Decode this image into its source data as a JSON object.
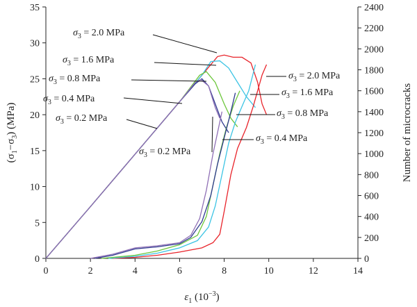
{
  "chart_data": {
    "type": "line",
    "title": "",
    "xlabel": {
      "base": "ε",
      "sub": "1",
      "rest": " (10",
      "sup": "−3",
      "end": ")"
    },
    "ylabel_left": {
      "pre": "(σ",
      "sub1": "1",
      "mid": "−σ",
      "sub2": "3",
      "end": ") (MPa)"
    },
    "ylabel_right": "Number of microcracks",
    "xlim": [
      0,
      14
    ],
    "ylim_left": [
      0,
      35
    ],
    "ylim_right": [
      0,
      2400
    ],
    "x_ticks": [
      "0",
      "2",
      "4",
      "6",
      "8",
      "10",
      "12",
      "14"
    ],
    "y_ticks_left": [
      "0",
      "5",
      "10",
      "15",
      "20",
      "25",
      "30",
      "35"
    ],
    "y_ticks_right": [
      "0",
      "200",
      "400",
      "600",
      "800",
      "1000",
      "1200",
      "1400",
      "1600",
      "1800",
      "2000",
      "2200",
      "2400"
    ],
    "grid": false,
    "series": [
      {
        "name": "σ3 = 2.0 MPa",
        "color": "#e8232a",
        "stress": [
          [
            0,
            0
          ],
          [
            2,
            7.2
          ],
          [
            4,
            14.5
          ],
          [
            6,
            21.8
          ],
          [
            7,
            25.5
          ],
          [
            7.7,
            28.1
          ],
          [
            8.0,
            28.3
          ],
          [
            8.4,
            28.0
          ],
          [
            8.8,
            28.0
          ],
          [
            9.2,
            27.2
          ],
          [
            9.5,
            24.5
          ],
          [
            9.7,
            21.5
          ],
          [
            9.9,
            20.0
          ]
        ],
        "cracks": [
          [
            3,
            0
          ],
          [
            4,
            10
          ],
          [
            5,
            30
          ],
          [
            6,
            60
          ],
          [
            7,
            100
          ],
          [
            7.5,
            150
          ],
          [
            7.8,
            230
          ],
          [
            8.0,
            450
          ],
          [
            8.3,
            800
          ],
          [
            8.6,
            1050
          ],
          [
            9.0,
            1250
          ],
          [
            9.3,
            1450
          ],
          [
            9.5,
            1600
          ],
          [
            9.7,
            1750
          ],
          [
            9.9,
            1850
          ]
        ]
      },
      {
        "name": "σ3 = 1.6 MPa",
        "color": "#3cc4e4",
        "stress": [
          [
            0,
            0
          ],
          [
            2,
            7.2
          ],
          [
            4,
            14.5
          ],
          [
            6,
            21.8
          ],
          [
            7,
            25.5
          ],
          [
            7.4,
            27.4
          ],
          [
            7.8,
            27.5
          ],
          [
            8.2,
            26.5
          ],
          [
            8.6,
            24.5
          ],
          [
            9.0,
            22.5
          ],
          [
            9.4,
            21.0
          ]
        ],
        "cracks": [
          [
            2.8,
            0
          ],
          [
            4,
            20
          ],
          [
            5,
            50
          ],
          [
            6,
            100
          ],
          [
            6.8,
            170
          ],
          [
            7.3,
            300
          ],
          [
            7.6,
            500
          ],
          [
            7.9,
            800
          ],
          [
            8.2,
            1100
          ],
          [
            8.5,
            1300
          ],
          [
            8.8,
            1450
          ],
          [
            9.1,
            1600
          ],
          [
            9.4,
            1850
          ]
        ]
      },
      {
        "name": "σ3 = 0.8 MPa",
        "color": "#6cc63b",
        "stress": [
          [
            0,
            0
          ],
          [
            2,
            7.2
          ],
          [
            4,
            14.5
          ],
          [
            6,
            21.8
          ],
          [
            6.9,
            25.5
          ],
          [
            7.2,
            26.0
          ],
          [
            7.6,
            24.5
          ],
          [
            8.0,
            21.5
          ],
          [
            8.3,
            19.5
          ],
          [
            8.6,
            18.3
          ]
        ],
        "cracks": [
          [
            2.5,
            0
          ],
          [
            4,
            30
          ],
          [
            5,
            70
          ],
          [
            6,
            130
          ],
          [
            6.8,
            220
          ],
          [
            7.2,
            400
          ],
          [
            7.5,
            700
          ],
          [
            7.8,
            1000
          ],
          [
            8.1,
            1250
          ],
          [
            8.4,
            1450
          ],
          [
            8.7,
            1600
          ]
        ]
      },
      {
        "name": "σ3 = 0.4 MPa",
        "color": "#2f3a8f",
        "stress": [
          [
            0,
            0
          ],
          [
            2,
            7.2
          ],
          [
            4,
            14.5
          ],
          [
            6,
            21.8
          ],
          [
            6.7,
            24.3
          ],
          [
            7.0,
            25.0
          ],
          [
            7.3,
            24.0
          ],
          [
            7.6,
            21.5
          ],
          [
            7.9,
            19.0
          ],
          [
            8.2,
            17.5
          ]
        ],
        "cracks": [
          [
            2.2,
            0
          ],
          [
            3,
            30
          ],
          [
            4,
            90
          ],
          [
            5,
            110
          ],
          [
            6,
            140
          ],
          [
            6.5,
            200
          ],
          [
            7.0,
            350
          ],
          [
            7.4,
            600
          ],
          [
            7.7,
            900
          ],
          [
            8.0,
            1150
          ],
          [
            8.3,
            1400
          ],
          [
            8.5,
            1580
          ]
        ]
      },
      {
        "name": "σ3 = 0.2 MPa",
        "color": "#8f6fb5",
        "stress": [
          [
            0,
            0
          ],
          [
            2,
            7.2
          ],
          [
            4,
            14.5
          ],
          [
            6,
            21.8
          ],
          [
            6.7,
            24.5
          ],
          [
            6.95,
            24.9
          ],
          [
            7.3,
            24.0
          ],
          [
            7.6,
            21.0
          ],
          [
            7.8,
            19.5
          ]
        ],
        "cracks": [
          [
            2.0,
            0
          ],
          [
            3,
            40
          ],
          [
            4,
            100
          ],
          [
            5,
            120
          ],
          [
            6,
            150
          ],
          [
            6.5,
            220
          ],
          [
            6.9,
            380
          ],
          [
            7.2,
            650
          ],
          [
            7.5,
            1000
          ],
          [
            7.7,
            1200
          ],
          [
            7.9,
            1400
          ]
        ]
      }
    ],
    "annotations": [
      {
        "label": "σ3 = 2.0 MPa",
        "text": "= 2.0 MPa"
      },
      {
        "label": "σ3 = 1.6 MPa",
        "text": "= 1.6 MPa"
      },
      {
        "label": "σ3 = 0.8 MPa",
        "text": "= 0.8 MPa"
      },
      {
        "label": "σ3 = 0.4 MPa",
        "text": "= 0.4 MPa"
      },
      {
        "label": "σ3 = 0.2 MPa",
        "text": "= 0.2 MPa"
      },
      {
        "label": "σ3 = 0.2 MPa",
        "text": "= 0.2 MPa"
      },
      {
        "label": "σ3 = 2.0 MPa",
        "text": "= 2.0 MPa"
      },
      {
        "label": "σ3 = 1.6 MPa",
        "text": "= 1.6 MPa"
      },
      {
        "label": "σ3 = 0.8 MPa",
        "text": "= 0.8 MPa"
      },
      {
        "label": "σ3 = 0.4 MPa",
        "text": "= 0.4 MPa"
      }
    ]
  }
}
